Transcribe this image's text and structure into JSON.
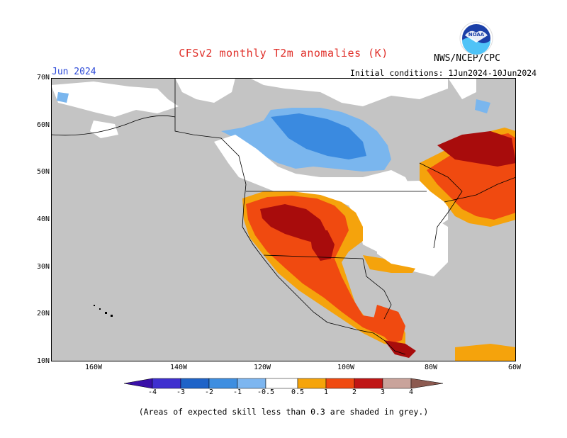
{
  "map": {
    "title": "CFSv2 monthly T2m anomalies (K)",
    "agency": "NWS/NCEP/CPC",
    "month": "Jun 2024",
    "initial_conditions": "Initial conditions: 1Jun2024-10Jun2024",
    "footnote": "(Areas of expected skill less than 0.3 are shaded in grey.)",
    "lat_labels": [
      "70N",
      "60N",
      "50N",
      "40N",
      "30N",
      "20N",
      "10N"
    ],
    "lon_labels": [
      "160W",
      "140W",
      "120W",
      "100W",
      "80W",
      "60W"
    ],
    "colorbar": {
      "labels": [
        "-4",
        "-3",
        "-2",
        "-1",
        "-0.5",
        "0.5",
        "1",
        "2",
        "3",
        "4"
      ],
      "colors": [
        "#3a10a8",
        "#3f2fcf",
        "#1e63c8",
        "#3e8ee0",
        "#7db6f0",
        "#ffffff",
        "#f5a40a",
        "#f04a10",
        "#c01515",
        "#8b0a0a",
        "#c9a39b",
        "#8c5a50"
      ]
    },
    "colors": {
      "grey": "#c4c4c4",
      "white": "#ffffff",
      "light_blue": "#7ab6ee",
      "blue": "#3a8ae0",
      "orange": "#f5a30c",
      "red_orange": "#f04a10",
      "dark_red": "#a80c0c"
    }
  }
}
